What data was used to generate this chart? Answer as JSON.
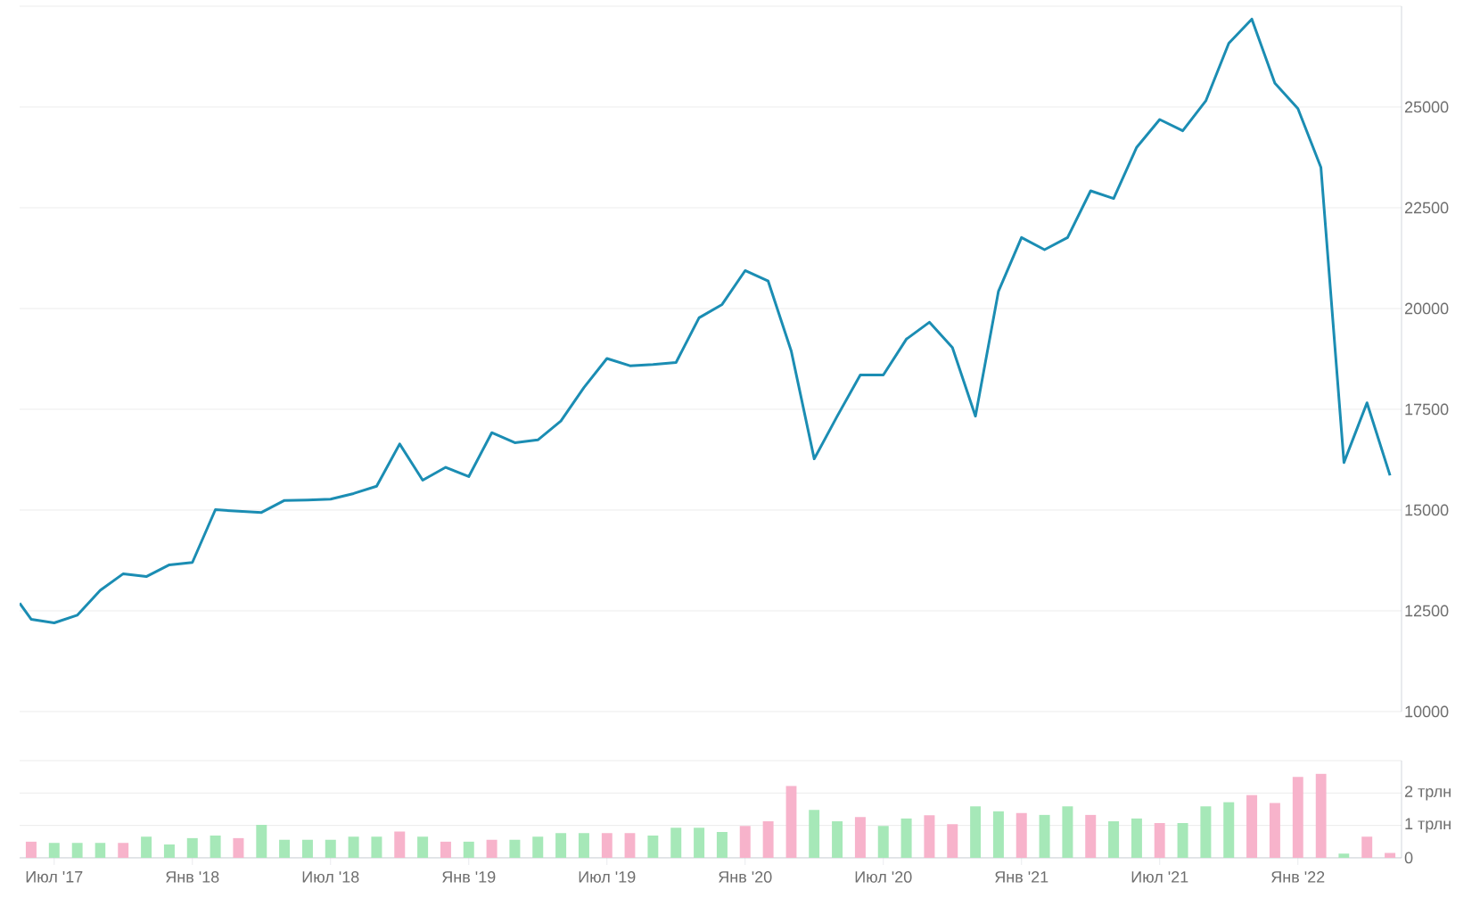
{
  "chart_data": [
    {
      "type": "line",
      "x": [
        "2017-05-16",
        "2017-06",
        "2017-07",
        "2017-08",
        "2017-09",
        "2017-10",
        "2017-11",
        "2017-12",
        "2018-01",
        "2018-02",
        "2018-03",
        "2018-04",
        "2018-05",
        "2018-06",
        "2018-07",
        "2018-08",
        "2018-09",
        "2018-10",
        "2018-11",
        "2018-12",
        "2019-01",
        "2019-02",
        "2019-03",
        "2019-04",
        "2019-05",
        "2019-06",
        "2019-07",
        "2019-08",
        "2019-09",
        "2019-10",
        "2019-11",
        "2019-12",
        "2020-01",
        "2020-02",
        "2020-03",
        "2020-04",
        "2020-05",
        "2020-06",
        "2020-07",
        "2020-08",
        "2020-09",
        "2020-10",
        "2020-11",
        "2020-12",
        "2021-01",
        "2021-02",
        "2021-03",
        "2021-04",
        "2021-05",
        "2021-06",
        "2021-07",
        "2021-08",
        "2021-09",
        "2021-10",
        "2021-11",
        "2021-12",
        "2022-01",
        "2022-02",
        "2022-03",
        "2022-04",
        "2022-05"
      ],
      "series": [
        {
          "color": "#1b8db3",
          "values": [
            12690,
            12290,
            12200,
            12390,
            13010,
            13420,
            13350,
            13640,
            13700,
            15010,
            14970,
            14940,
            15240,
            15250,
            15270,
            15410,
            15590,
            16640,
            15740,
            16060,
            15830,
            16920,
            16670,
            16740,
            17210,
            18040,
            18760,
            18580,
            18610,
            18660,
            19770,
            20100,
            20940,
            20680,
            18950,
            16270,
            17330,
            18350,
            18350,
            19240,
            19660,
            19030,
            17330,
            20430,
            21760,
            21460,
            21760,
            22920,
            22730,
            24000,
            24690,
            24410,
            25150,
            26580,
            27180,
            25590,
            24960,
            23500,
            16180,
            17660,
            15860
          ]
        }
      ],
      "xlim": [
        "2017-05-16",
        "2022-05-16"
      ],
      "ylim": [
        10000,
        27500
      ],
      "yticks": [
        10000,
        12500,
        15000,
        17500,
        20000,
        22500,
        25000,
        {
          "value": 27500,
          "label": null
        }
      ],
      "grid": "y",
      "marker": "none",
      "line_style": "solid",
      "tick_labels": "y"
    },
    {
      "type": "bar",
      "x": [
        "2017-06",
        "2017-07",
        "2017-08",
        "2017-09",
        "2017-10",
        "2017-11",
        "2017-12",
        "2018-01",
        "2018-02",
        "2018-03",
        "2018-04",
        "2018-05",
        "2018-06",
        "2018-07",
        "2018-08",
        "2018-09",
        "2018-10",
        "2018-11",
        "2018-12",
        "2019-01",
        "2019-02",
        "2019-03",
        "2019-04",
        "2019-05",
        "2019-06",
        "2019-07",
        "2019-08",
        "2019-09",
        "2019-10",
        "2019-11",
        "2019-12",
        "2020-01",
        "2020-02",
        "2020-03",
        "2020-04",
        "2020-05",
        "2020-06",
        "2020-07",
        "2020-08",
        "2020-09",
        "2020-10",
        "2020-11",
        "2020-12",
        "2021-01",
        "2021-02",
        "2021-03",
        "2021-04",
        "2021-05",
        "2021-06",
        "2021-07",
        "2021-08",
        "2021-09",
        "2021-10",
        "2021-11",
        "2021-12",
        "2022-01",
        "2022-02",
        "2022-03",
        "2022-04",
        "2022-05"
      ],
      "values": [
        0.5,
        0.46,
        0.46,
        0.46,
        0.46,
        0.65,
        0.41,
        0.61,
        0.69,
        0.61,
        1.02,
        0.56,
        0.56,
        0.56,
        0.65,
        0.65,
        0.81,
        0.65,
        0.5,
        0.5,
        0.56,
        0.56,
        0.65,
        0.76,
        0.76,
        0.76,
        0.76,
        0.69,
        0.93,
        0.93,
        0.8,
        0.98,
        1.13,
        2.22,
        1.48,
        1.13,
        1.26,
        0.98,
        1.22,
        1.31,
        1.04,
        1.59,
        1.44,
        1.39,
        1.33,
        1.59,
        1.33,
        1.13,
        1.22,
        1.07,
        1.07,
        1.59,
        1.72,
        1.94,
        1.69,
        2.5,
        2.59,
        0.13,
        0.65,
        0.15
      ],
      "colors": [
        "#f7b3cb",
        "#a6e8b8",
        "#a6e8b8",
        "#a6e8b8",
        "#f7b3cb",
        "#a6e8b8",
        "#a6e8b8",
        "#a6e8b8",
        "#a6e8b8",
        "#f7b3cb",
        "#a6e8b8",
        "#a6e8b8",
        "#a6e8b8",
        "#a6e8b8",
        "#a6e8b8",
        "#a6e8b8",
        "#f7b3cb",
        "#a6e8b8",
        "#f7b3cb",
        "#a6e8b8",
        "#f7b3cb",
        "#a6e8b8",
        "#a6e8b8",
        "#a6e8b8",
        "#a6e8b8",
        "#f7b3cb",
        "#f7b3cb",
        "#a6e8b8",
        "#a6e8b8",
        "#a6e8b8",
        "#a6e8b8",
        "#f7b3cb",
        "#f7b3cb",
        "#f7b3cb",
        "#a6e8b8",
        "#a6e8b8",
        "#f7b3cb",
        "#a6e8b8",
        "#a6e8b8",
        "#f7b3cb",
        "#f7b3cb",
        "#a6e8b8",
        "#a6e8b8",
        "#f7b3cb",
        "#a6e8b8",
        "#a6e8b8",
        "#f7b3cb",
        "#a6e8b8",
        "#a6e8b8",
        "#f7b3cb",
        "#a6e8b8",
        "#a6e8b8",
        "#a6e8b8",
        "#f7b3cb",
        "#f7b3cb",
        "#f7b3cb",
        "#f7b3cb",
        "#a6e8b8",
        "#f7b3cb",
        "#f7b3cb"
      ],
      "xlim": [
        "2017-05-16",
        "2022-05-16"
      ],
      "xticks": [
        {
          "value": "2017-07",
          "label": "Июл '17"
        },
        {
          "value": "2018-01",
          "label": "Янв '18"
        },
        {
          "value": "2018-07",
          "label": "Июл '18"
        },
        {
          "value": "2019-01",
          "label": "Янв '19"
        },
        {
          "value": "2019-07",
          "label": "Июл '19"
        },
        {
          "value": "2020-01",
          "label": "Янв '20"
        },
        {
          "value": "2020-07",
          "label": "Июл '20"
        },
        {
          "value": "2021-01",
          "label": "Янв '21"
        },
        {
          "value": "2021-07",
          "label": "Июл '21"
        },
        {
          "value": "2022-01",
          "label": "Янв '22"
        }
      ],
      "ylim": [
        0,
        3
      ],
      "yticks": [
        0,
        {
          "value": 1,
          "label": "1 трлн"
        },
        {
          "value": 2,
          "label": "2 трлн"
        },
        {
          "value": 3,
          "label": null
        }
      ],
      "grid": "y"
    }
  ]
}
